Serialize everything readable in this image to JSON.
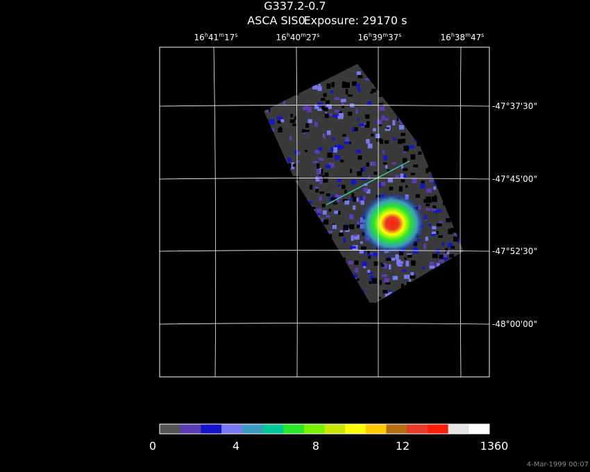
{
  "title": "G337.2-0.7",
  "subtitle": {
    "instrument": "ASCA SIS0",
    "exposure": "Exposure: 29170 s"
  },
  "ra_labels": [
    [
      "16",
      "h",
      "41",
      "m",
      "17",
      "s"
    ],
    [
      "16",
      "h",
      "40",
      "m",
      "27",
      "s"
    ],
    [
      "16",
      "h",
      "39",
      "m",
      "37",
      "s"
    ],
    [
      "16",
      "h",
      "38",
      "m",
      "47",
      "s"
    ]
  ],
  "dec_labels": [
    "-47°37'30\"",
    "-47°45'00\"",
    "-47°52'30\"",
    "-48°00'00\""
  ],
  "colorbar": {
    "colors": [
      "#555555",
      "#5a3cb4",
      "#1414c8",
      "#7878f0",
      "#3c9bbe",
      "#00c896",
      "#28e628",
      "#78f000",
      "#c8e600",
      "#ffff00",
      "#ffc800",
      "#b46e14",
      "#e63c28",
      "#ff1e0a",
      "#e6e6e6",
      "#ffffff"
    ],
    "labels": [
      0,
      4,
      8,
      12,
      1360
    ]
  },
  "timestamp": "4-Mar-1999 00:07"
}
